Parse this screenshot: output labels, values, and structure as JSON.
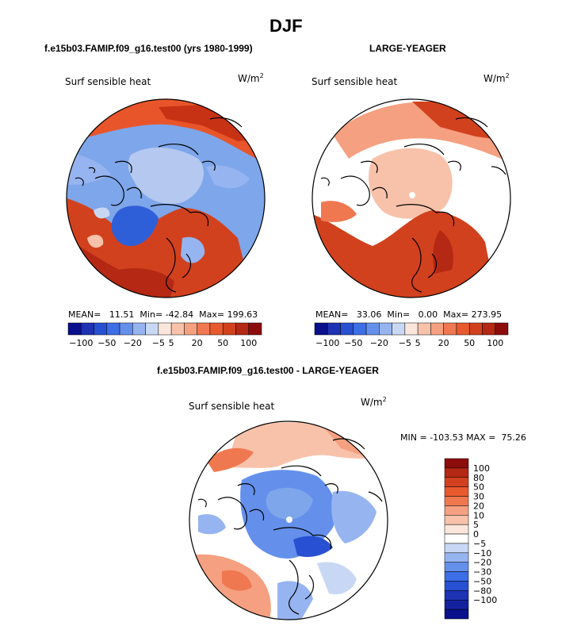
{
  "title": "DJF",
  "panels": [
    {
      "header": "f.e15b03.FAMIP.f09_g16.test00 (yrs 1980-1999)",
      "variable": "Surf sensible heat",
      "units_base": "W/m",
      "units_exp": "2",
      "stats": {
        "mean_label": "MEAN=",
        "mean": "11.51",
        "min_label": "Min=",
        "min": "-42.84",
        "max_label": "Max=",
        "max": "199.63"
      }
    },
    {
      "header": "LARGE-YEAGER",
      "variable": "Surf sensible heat",
      "units_base": "W/m",
      "units_exp": "2",
      "stats": {
        "mean_label": "MEAN=",
        "mean": "33.06",
        "min_label": "Min=",
        "min": "0.00",
        "max_label": "Max=",
        "max": "273.95"
      }
    },
    {
      "header": "f.e15b03.FAMIP.f09_g16.test00 - LARGE-YEAGER",
      "variable": "Surf sensible heat",
      "units_base": "W/m",
      "units_exp": "2",
      "stats": {
        "min_label": "MIN =",
        "min": "-103.53",
        "max_label": "MAX =",
        "max": "75.26"
      }
    }
  ],
  "colorbar_horizontal": {
    "colors": [
      "#0a0f8c",
      "#1e32b4",
      "#2850d2",
      "#3c6ee6",
      "#6490ec",
      "#96b4f0",
      "#c8d8f4",
      "#fbe6dc",
      "#f8c2aa",
      "#f5a080",
      "#f07850",
      "#e85a2e",
      "#d2411e",
      "#b42814",
      "#8c0c0c"
    ],
    "tick_labels": [
      "-100",
      "-50",
      "-20",
      "-5",
      "5",
      "20",
      "50",
      "100"
    ]
  },
  "colorbar_vertical": {
    "colors": [
      "#8c0c0c",
      "#b42814",
      "#d2411e",
      "#e85a2e",
      "#f07850",
      "#f5a080",
      "#f8c2aa",
      "#fbe6dc",
      "#ffffff",
      "#c8d8f4",
      "#96b4f0",
      "#6490ec",
      "#3c6ee6",
      "#2850d2",
      "#1e32b4",
      "#14219e",
      "#0a0f8c"
    ],
    "tick_labels": [
      "100",
      "80",
      "50",
      "30",
      "20",
      "10",
      "5",
      "0",
      "-5",
      "-10",
      "-20",
      "-30",
      "-50",
      "-80",
      "-100"
    ]
  },
  "colors": {
    "warm_dark": "#c83214",
    "warm_mid": "#e8552a",
    "cool_mid": "#7ea6ea",
    "cool_light": "#b4c8f0",
    "cool_dark": "#2f5fd8"
  }
}
